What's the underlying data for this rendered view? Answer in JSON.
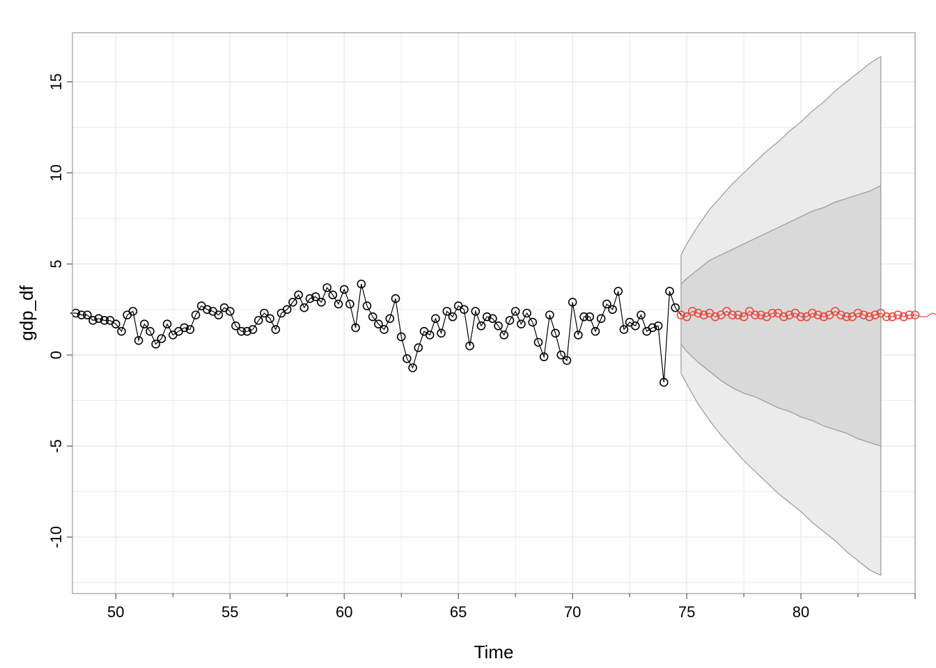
{
  "chart_data": {
    "type": "line",
    "title": "",
    "xlabel": "Time",
    "ylabel": "gdp_df",
    "xlim": [
      48.1,
      85.0
    ],
    "ylim": [
      -13.1,
      17.7
    ],
    "x_ticks": [
      50,
      55,
      60,
      65,
      70,
      75,
      80
    ],
    "y_ticks": [
      -10,
      -5,
      0,
      5,
      10,
      15
    ],
    "grid": true,
    "legend": "none",
    "colors": {
      "observed": "#000000",
      "forecast": "#e8453c",
      "band80": "#d9d9d9",
      "band95": "#ebebeb",
      "band_edge": "#999999",
      "grid": "#e6e6e6",
      "panel_border": "#999999"
    },
    "series": [
      {
        "role": "observed",
        "x_start": 48.0,
        "x_step": 0.25,
        "values": [
          2.3,
          2.3,
          2.2,
          2.2,
          1.9,
          2.0,
          1.9,
          1.9,
          1.7,
          1.3,
          2.2,
          2.4,
          0.8,
          1.7,
          1.3,
          0.6,
          0.9,
          1.7,
          1.1,
          1.3,
          1.5,
          1.4,
          2.2,
          2.7,
          2.5,
          2.4,
          2.2,
          2.6,
          2.4,
          1.6,
          1.3,
          1.3,
          1.4,
          1.9,
          2.3,
          2.0,
          1.4,
          2.3,
          2.5,
          2.9,
          3.3,
          2.6,
          3.1,
          3.2,
          2.9,
          3.7,
          3.3,
          2.8,
          3.6,
          2.8,
          1.5,
          3.9,
          2.7,
          2.1,
          1.7,
          1.4,
          2.0,
          3.1,
          1.0,
          -0.2,
          -0.7,
          0.4,
          1.3,
          1.1,
          2.0,
          1.2,
          2.4,
          2.1,
          2.7,
          2.5,
          0.5,
          2.4,
          1.6,
          2.1,
          2.0,
          1.6,
          1.1,
          1.9,
          2.4,
          1.7,
          2.3,
          1.8,
          0.7,
          -0.1,
          2.2,
          1.2,
          0.0,
          -0.3,
          2.9,
          1.1,
          2.1,
          2.1,
          1.3,
          2.0,
          2.8,
          2.5,
          3.5,
          1.4,
          1.8,
          1.6,
          2.2,
          1.3,
          1.5,
          1.6,
          -1.5,
          3.5,
          2.6
        ]
      },
      {
        "role": "forecast",
        "x_start": 74.75,
        "x_step": 0.25,
        "values": [
          2.2,
          2.1,
          2.4,
          2.3,
          2.2,
          2.3,
          2.1,
          2.2,
          2.4,
          2.2,
          2.2,
          2.1,
          2.4,
          2.2,
          2.2,
          2.1,
          2.3,
          2.3,
          2.1,
          2.2,
          2.3,
          2.1,
          2.1,
          2.3,
          2.2,
          2.1,
          2.2,
          2.4,
          2.2,
          2.1,
          2.1,
          2.3,
          2.2,
          2.1,
          2.2,
          2.3,
          2.1,
          2.1,
          2.2,
          2.1,
          2.2,
          2.2,
          2.1,
          2.1,
          2.3,
          2.2,
          2.1,
          2.1,
          2.0,
          2.1,
          2.2,
          2.1,
          2.1,
          2.1,
          2.0,
          2.1,
          2.0,
          2.3,
          2.2,
          2.1,
          2.0,
          2.1,
          2.2,
          2.1,
          2.0,
          2.0,
          2.1,
          2.2,
          2.1,
          2.1,
          2.2,
          2.1,
          2.0,
          2.1,
          2.0,
          2.1,
          2.0,
          2.2,
          2.1,
          2.0,
          2.1,
          2.0,
          2.0,
          2.1,
          2.2,
          2.1,
          2.1,
          2.0,
          2.1,
          2.0,
          2.1,
          2.1,
          2.0,
          2.1,
          2.0,
          2.1,
          2.1,
          2.0,
          2.0,
          2.1,
          2.0,
          2.2,
          2.1,
          2.1,
          2.1,
          2.0,
          2.1
        ]
      }
    ],
    "forecast_bands": {
      "x": [
        74.75,
        75.0,
        75.5,
        76.0,
        76.5,
        77.0,
        77.5,
        78.0,
        78.5,
        79.0,
        79.5,
        80.0,
        80.5,
        81.0,
        81.5,
        82.0,
        82.5,
        83.0,
        83.5
      ],
      "lo80": [
        0.6,
        0.2,
        -0.4,
        -0.9,
        -1.4,
        -1.8,
        -2.1,
        -2.3,
        -2.6,
        -2.9,
        -3.1,
        -3.4,
        -3.6,
        -3.9,
        -4.1,
        -4.3,
        -4.6,
        -4.8,
        -5.0
      ],
      "hi80": [
        3.9,
        4.2,
        4.7,
        5.2,
        5.5,
        5.8,
        6.1,
        6.4,
        6.7,
        7.0,
        7.3,
        7.6,
        7.9,
        8.1,
        8.4,
        8.6,
        8.8,
        9.0,
        9.3
      ],
      "lo95": [
        -1.0,
        -1.6,
        -2.7,
        -3.6,
        -4.4,
        -5.1,
        -5.8,
        -6.4,
        -7.0,
        -7.6,
        -8.1,
        -8.6,
        -9.2,
        -9.7,
        -10.2,
        -10.8,
        -11.3,
        -11.8,
        -12.1
      ],
      "hi95": [
        5.5,
        6.1,
        7.1,
        8.0,
        8.7,
        9.4,
        10.0,
        10.6,
        11.2,
        11.7,
        12.3,
        12.8,
        13.4,
        13.9,
        14.5,
        15.0,
        15.5,
        16.0,
        16.4
      ]
    }
  }
}
